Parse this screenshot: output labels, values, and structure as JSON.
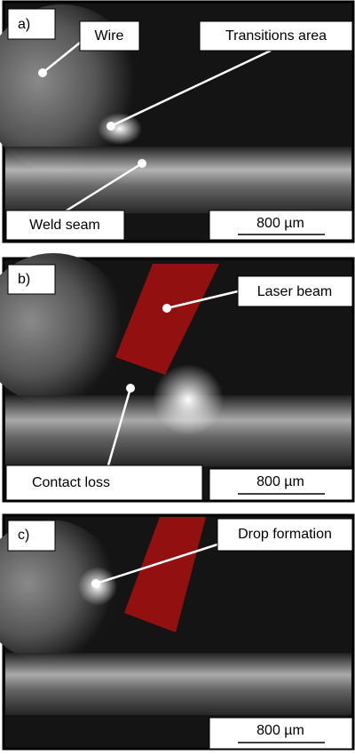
{
  "panels": [
    {
      "label": "a)",
      "annotations": [
        "Wire",
        "Transitions area",
        "Weld seam"
      ],
      "scale_bar": "800 µm"
    },
    {
      "label": "b)",
      "annotations": [
        "Laser beam",
        "Contact loss"
      ],
      "scale_bar": "800 µm"
    },
    {
      "label": "c)",
      "annotations": [
        "Drop formation"
      ],
      "scale_bar": "800 µm"
    }
  ]
}
